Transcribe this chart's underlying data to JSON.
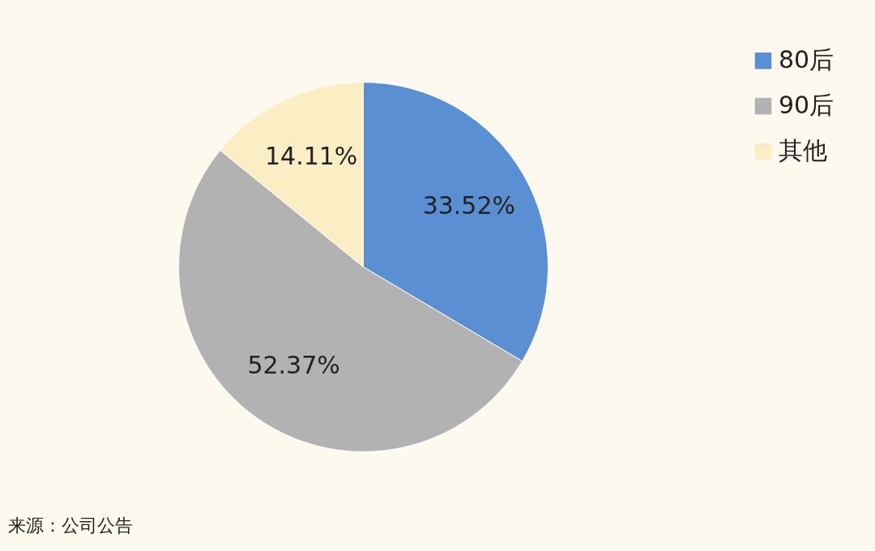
{
  "chart_data": {
    "type": "pie",
    "categories": [
      "80后",
      "90后",
      "其他"
    ],
    "values": [
      33.52,
      52.37,
      14.11
    ],
    "colors": [
      "#5b8fd4",
      "#b2b2b2",
      "#fbeec4"
    ],
    "value_labels": [
      "33.52%",
      "52.37%",
      "14.11%"
    ],
    "legend": "right",
    "annotations": [
      "来源：公司公告"
    ]
  }
}
